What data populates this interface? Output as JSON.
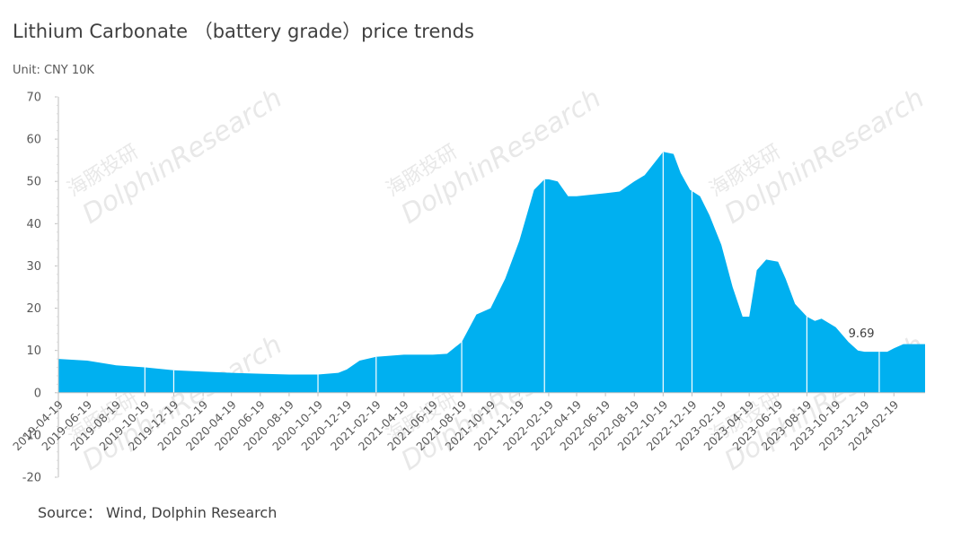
{
  "chart_data": {
    "type": "area",
    "title": "Lithium Carbonate （battery grade）price trends",
    "unit_label": "Unit: CNY 10K",
    "source": "Source： Wind, Dolphin Research",
    "watermark": "DolphinResearch",
    "watermark_cn": "海豚投研",
    "ylim": [
      -20,
      70
    ],
    "yticks": [
      -20,
      -10,
      0,
      10,
      20,
      30,
      40,
      50,
      60,
      70
    ],
    "xlim": [
      "2019-04-19",
      "2024-04-25"
    ],
    "xticks": [
      "2019-04-19",
      "2019-06-19",
      "2019-08-19",
      "2019-10-19",
      "2019-12-19",
      "2020-02-19",
      "2020-04-19",
      "2020-06-19",
      "2020-08-19",
      "2020-10-19",
      "2020-12-19",
      "2021-02-19",
      "2021-04-19",
      "2021-06-19",
      "2021-08-19",
      "2021-10-19",
      "2021-12-19",
      "2022-02-19",
      "2022-04-19",
      "2022-06-19",
      "2022-08-19",
      "2022-10-19",
      "2022-12-19",
      "2023-02-19",
      "2023-04-19",
      "2023-06-19",
      "2023-08-19",
      "2023-10-19",
      "2023-12-19",
      "2024-02-19"
    ],
    "grid": false,
    "legend": "none",
    "color": "#00b0f0",
    "series": [
      {
        "x": [
          "2019-04-19",
          "2019-06-19",
          "2019-08-19",
          "2019-10-19",
          "2019-12-19",
          "2020-02-19",
          "2020-04-19",
          "2020-06-19",
          "2020-08-19",
          "2020-10-19",
          "2020-12-01",
          "2020-12-19",
          "2021-01-15",
          "2021-02-19",
          "2021-04-19",
          "2021-06-19",
          "2021-07-19",
          "2021-08-19",
          "2021-09-19",
          "2021-10-19",
          "2021-11-19",
          "2021-12-19",
          "2022-01-19",
          "2022-02-10",
          "2022-02-19",
          "2022-03-10",
          "2022-04-01",
          "2022-04-19",
          "2022-06-19",
          "2022-07-19",
          "2022-08-19",
          "2022-09-10",
          "2022-10-19",
          "2022-11-10",
          "2022-11-25",
          "2022-12-15",
          "2023-01-05",
          "2023-01-25",
          "2023-02-19",
          "2023-03-15",
          "2023-04-05",
          "2023-04-19",
          "2023-05-05",
          "2023-05-25",
          "2023-06-19",
          "2023-07-05",
          "2023-07-25",
          "2023-08-19",
          "2023-09-05",
          "2023-09-19",
          "2023-10-19",
          "2023-11-15",
          "2023-12-05",
          "2023-12-19",
          "2024-01-19",
          "2024-02-05",
          "2024-02-19",
          "2024-03-10",
          "2024-04-25"
        ],
        "y": [
          8.0,
          7.6,
          6.5,
          6.0,
          5.3,
          5.0,
          4.7,
          4.5,
          4.3,
          4.3,
          4.7,
          5.5,
          7.6,
          8.5,
          9.0,
          9.0,
          9.2,
          12.0,
          18.5,
          20.0,
          27.0,
          36.0,
          48.0,
          50.5,
          50.5,
          50.0,
          46.5,
          46.5,
          47.2,
          47.6,
          50.0,
          51.5,
          57.0,
          56.5,
          52.0,
          48.0,
          46.5,
          42.0,
          35.0,
          25.0,
          18.0,
          18.0,
          29.0,
          31.5,
          31.0,
          27.0,
          21.0,
          18.0,
          17.0,
          17.5,
          15.5,
          12.0,
          10.0,
          9.69,
          9.69,
          9.69,
          10.5,
          11.5,
          11.5
        ]
      }
    ],
    "annotations": [
      {
        "x": "2023-12-19",
        "y": 9.69,
        "label": "9.69"
      }
    ]
  }
}
